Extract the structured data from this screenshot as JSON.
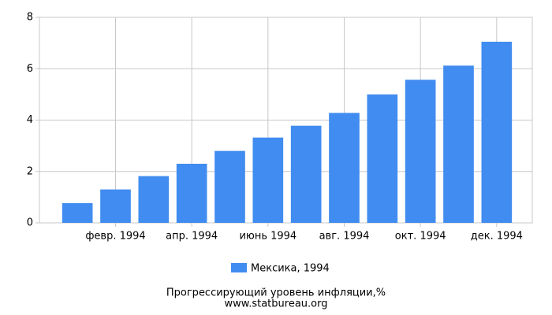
{
  "chart_data": {
    "type": "bar",
    "title": "Прогрессирующий уровень инфляции,%",
    "source": "www.statbureau.org",
    "categories": [
      null,
      "февр. 1994",
      null,
      "апр. 1994",
      null,
      "июнь 1994",
      null,
      "авг. 1994",
      null,
      "окт. 1994",
      null,
      "дек. 1994"
    ],
    "series": [
      {
        "name": "Мексика, 1994",
        "color": "#418cf0",
        "values": [
          0.77,
          1.3,
          1.82,
          2.3,
          2.8,
          3.32,
          3.78,
          4.28,
          5.0,
          5.57,
          6.12,
          7.05
        ]
      }
    ],
    "ylim": [
      0,
      8
    ],
    "yticks": [
      0,
      2,
      4,
      6,
      8
    ],
    "grid": true
  }
}
